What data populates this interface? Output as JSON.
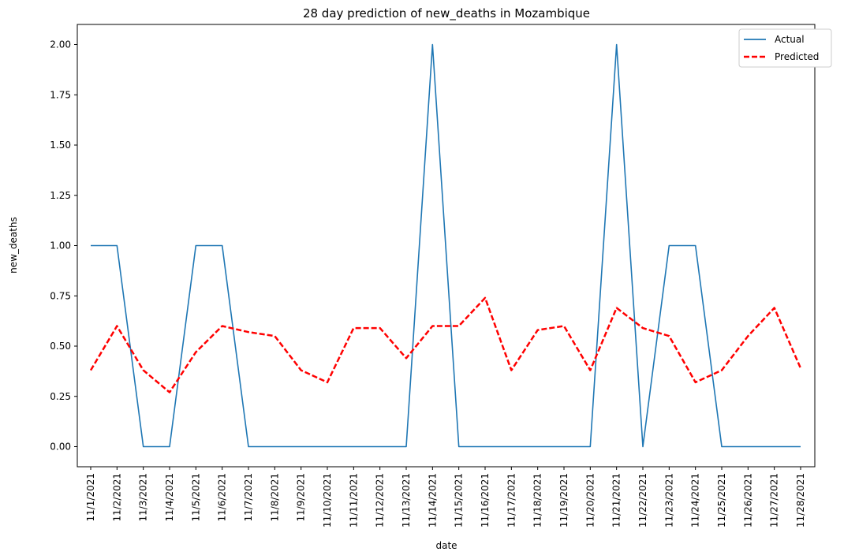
{
  "chart_data": {
    "type": "line",
    "title": "28 day prediction of new_deaths in Mozambique",
    "xlabel": "date",
    "ylabel": "new_deaths",
    "ylim": [
      -0.1,
      2.1
    ],
    "yticks": [
      "0.00",
      "0.25",
      "0.50",
      "0.75",
      "1.00",
      "1.25",
      "1.50",
      "1.75",
      "2.00"
    ],
    "ytick_values": [
      0,
      0.25,
      0.5,
      0.75,
      1.0,
      1.25,
      1.5,
      1.75,
      2.0
    ],
    "grid": false,
    "legend_position": "top-right",
    "categories": [
      "11/1/2021",
      "11/2/2021",
      "11/3/2021",
      "11/4/2021",
      "11/5/2021",
      "11/6/2021",
      "11/7/2021",
      "11/8/2021",
      "11/9/2021",
      "11/10/2021",
      "11/11/2021",
      "11/12/2021",
      "11/13/2021",
      "11/14/2021",
      "11/15/2021",
      "11/16/2021",
      "11/17/2021",
      "11/18/2021",
      "11/19/2021",
      "11/20/2021",
      "11/21/2021",
      "11/22/2021",
      "11/23/2021",
      "11/24/2021",
      "11/25/2021",
      "11/26/2021",
      "11/27/2021",
      "11/28/2021"
    ],
    "series": [
      {
        "name": "Actual",
        "color": "#1f77b4",
        "style": "solid",
        "values": [
          1,
          1,
          0,
          0,
          1,
          1,
          0,
          0,
          0,
          0,
          0,
          0,
          0,
          2,
          0,
          0,
          0,
          0,
          0,
          0,
          2,
          0,
          1,
          1,
          0,
          0,
          0,
          0
        ]
      },
      {
        "name": "Predicted",
        "color": "#ff0000",
        "style": "dashed",
        "values": [
          0.38,
          0.6,
          0.38,
          0.27,
          0.47,
          0.6,
          0.57,
          0.55,
          0.38,
          0.32,
          0.59,
          0.59,
          0.44,
          0.6,
          0.6,
          0.74,
          0.38,
          0.58,
          0.6,
          0.38,
          0.69,
          0.59,
          0.55,
          0.32,
          0.38,
          0.55,
          0.69,
          0.39
        ]
      }
    ]
  }
}
